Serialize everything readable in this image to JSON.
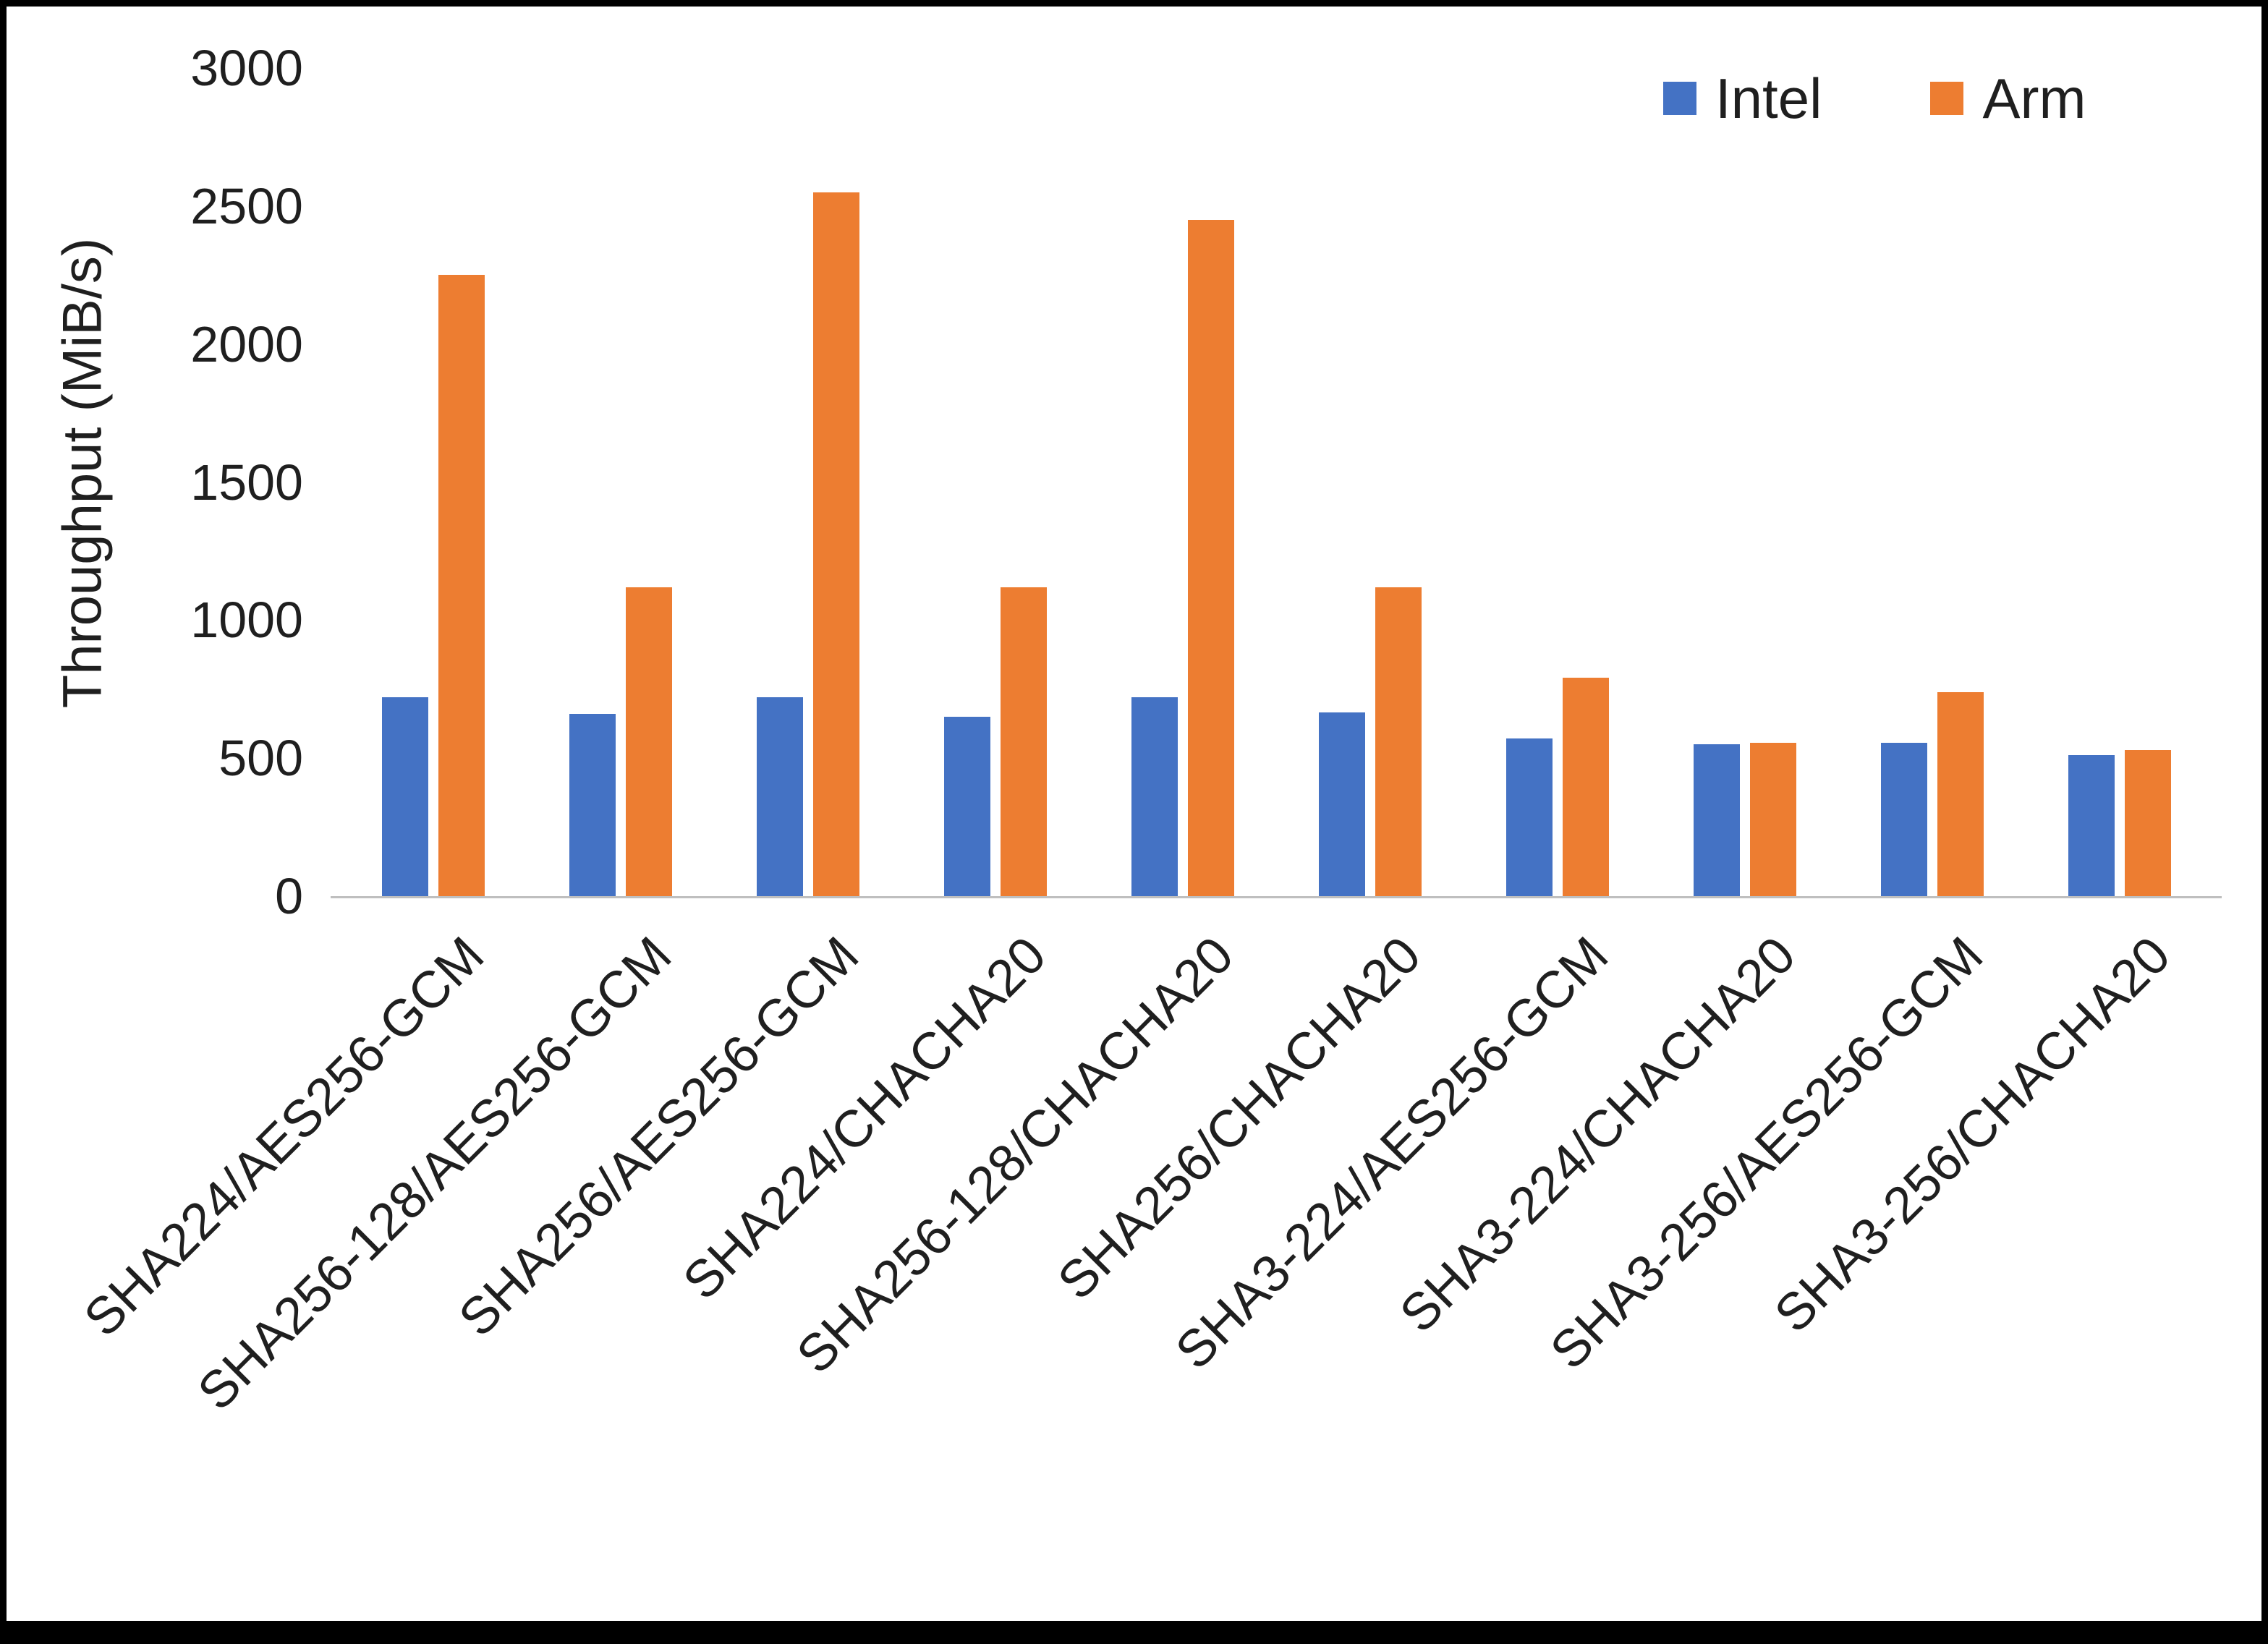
{
  "chart_data": {
    "type": "bar",
    "title": "",
    "xlabel": "",
    "ylabel": "Throughput (MiB/s)",
    "ylim": [
      0,
      3000
    ],
    "ytick_step": 500,
    "grid": false,
    "legend_position": "top-right",
    "axis_color": "#BFBFBF",
    "categories": [
      "SHA224/AES256-GCM",
      "SHA256-128/AES256-GCM",
      "SHA256/AES256-GCM",
      "SHA224/CHACHA20",
      "SHA256-128/CHACHA20",
      "SHA256/CHACHA20",
      "SHA3-224/AES256-GCM",
      "SHA3-224/CHACHA20",
      "SHA3-256/AES256-GCM",
      "SHA3-256/CHACHA20"
    ],
    "series": [
      {
        "name": "Intel",
        "color": "#4472C4",
        "values": [
          720,
          660,
          720,
          650,
          720,
          665,
          570,
          550,
          555,
          510
        ]
      },
      {
        "name": "Arm",
        "color": "#ED7D31",
        "values": [
          2250,
          1120,
          2550,
          1120,
          2450,
          1120,
          790,
          555,
          740,
          530
        ]
      }
    ]
  }
}
